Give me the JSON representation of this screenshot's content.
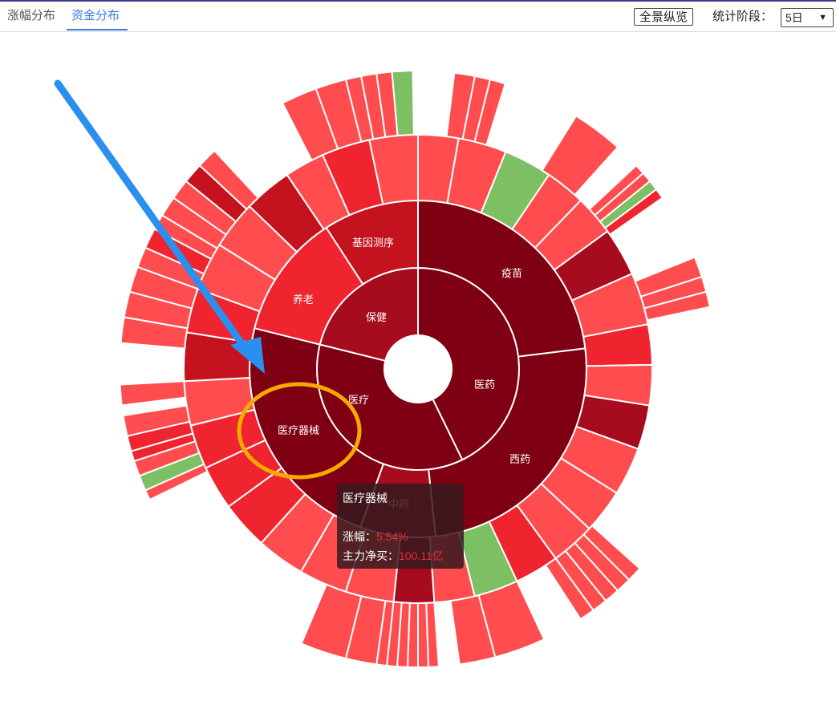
{
  "tabs": [
    {
      "label": "涨幅分布",
      "active": false
    },
    {
      "label": "资金分布",
      "active": true
    }
  ],
  "toolbar": {
    "overview_button": "全景纵览",
    "period_label": "统计阶段：",
    "period_value": "5日",
    "caret": "▼"
  },
  "chart_data": {
    "type": "sunburst",
    "center": {
      "label": ""
    },
    "ring1": [
      {
        "label": "保健",
        "color": "#9a0d1e"
      },
      {
        "label": "医药",
        "color": "#7f0012"
      },
      {
        "label": "医疗",
        "color": "#7f0012"
      }
    ],
    "ring2": [
      {
        "label": "疫苗",
        "color": "#7f0012"
      },
      {
        "label": "西药",
        "color": "#7f0012"
      },
      {
        "label": "中药",
        "color": "#a60b1e"
      },
      {
        "label": "医疗器械",
        "color": "#7f0012"
      },
      {
        "label": "养老",
        "color": "#f0242f"
      },
      {
        "label": "基因测序",
        "color": "#c4121f"
      }
    ],
    "color_scale": {
      "up_strong": "#7f0012",
      "up_mid": "#c4121f",
      "up": "#f0242f",
      "up_light": "#ff4d4f",
      "down": "#7cc063"
    }
  },
  "tooltip": {
    "title": "医疗器械",
    "change_label": "涨幅：",
    "change_value": "5.54%",
    "flow_label": "主力净买：",
    "flow_value": "100.11亿"
  },
  "annotations": {
    "arrow_color": "#2b8ff0",
    "circle_color": "#f6aa00"
  }
}
